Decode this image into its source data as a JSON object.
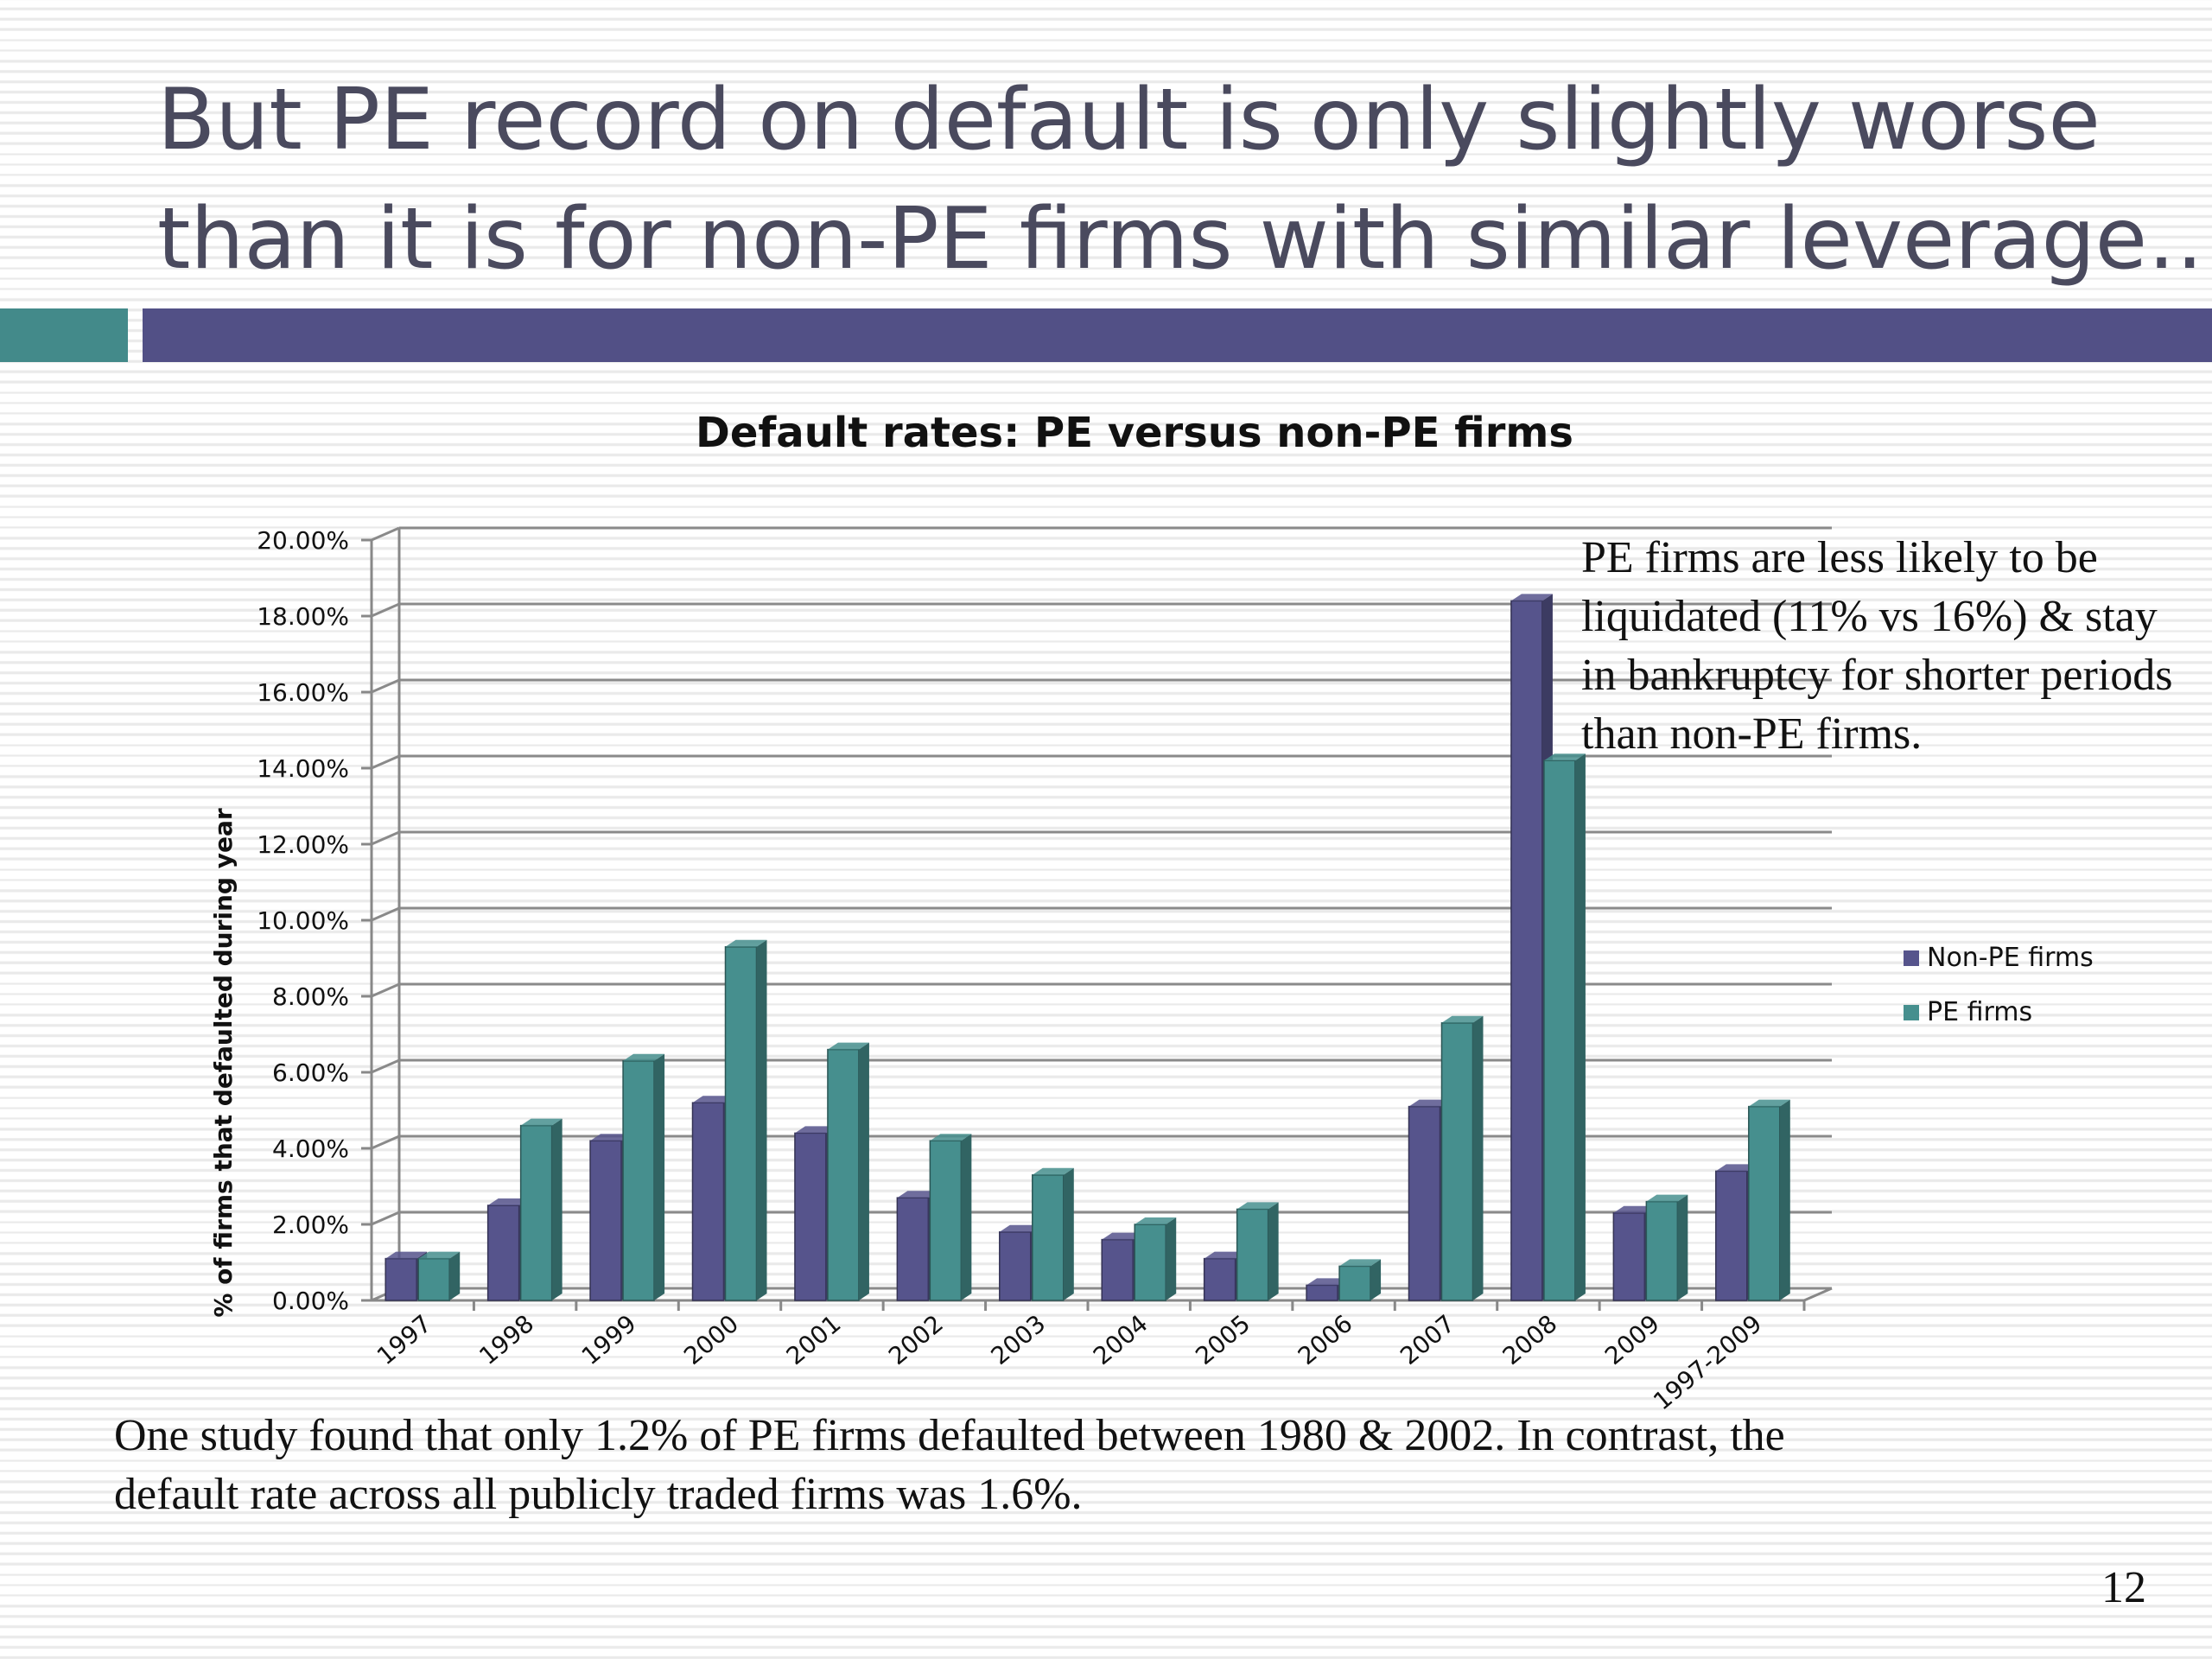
{
  "slide": {
    "title_line1": "But  PE record on default is only slightly worse",
    "title_line2": "than it is for non-PE firms with similar leverage…",
    "annotation": "PE firms are less likely to be liquidated (11% vs 16%) & stay in bankruptcy for shorter periods than non-PE firms.",
    "footnote_line1": "One study found that only 1.2% of PE firms defaulted between 1980 & 2002. In contrast, the",
    "footnote_line2": "default rate across all publicly traded firms was 1.6%.",
    "page_number": "12"
  },
  "colors": {
    "non_pe": "#56548c",
    "pe": "#468f8e",
    "title": "#4a4a5e",
    "accent_teal": "#438a8a",
    "accent_navy": "#525086"
  },
  "chart_data": {
    "type": "bar",
    "title": "Default rates: PE versus non-PE firms",
    "ylabel": "% of firms that defaulted during year",
    "xlabel": "",
    "ylim": [
      0,
      20
    ],
    "yticks": [
      "0.00%",
      "2.00%",
      "4.00%",
      "6.00%",
      "8.00%",
      "10.00%",
      "12.00%",
      "14.00%",
      "16.00%",
      "18.00%",
      "20.00%"
    ],
    "categories": [
      "1997",
      "1998",
      "1999",
      "2000",
      "2001",
      "2002",
      "2003",
      "2004",
      "2005",
      "2006",
      "2007",
      "2008",
      "2009",
      "1997-2009"
    ],
    "series": [
      {
        "name": "Non-PE firms",
        "values": [
          1.1,
          2.5,
          4.2,
          5.2,
          4.4,
          2.7,
          1.8,
          1.6,
          1.1,
          0.4,
          5.1,
          18.4,
          2.3,
          3.4
        ]
      },
      {
        "name": "PE firms",
        "values": [
          1.1,
          4.6,
          6.3,
          9.3,
          6.6,
          4.2,
          3.3,
          2.0,
          2.4,
          0.9,
          7.3,
          14.2,
          2.6,
          5.1
        ]
      }
    ],
    "legend_position": "right",
    "grid": true
  }
}
